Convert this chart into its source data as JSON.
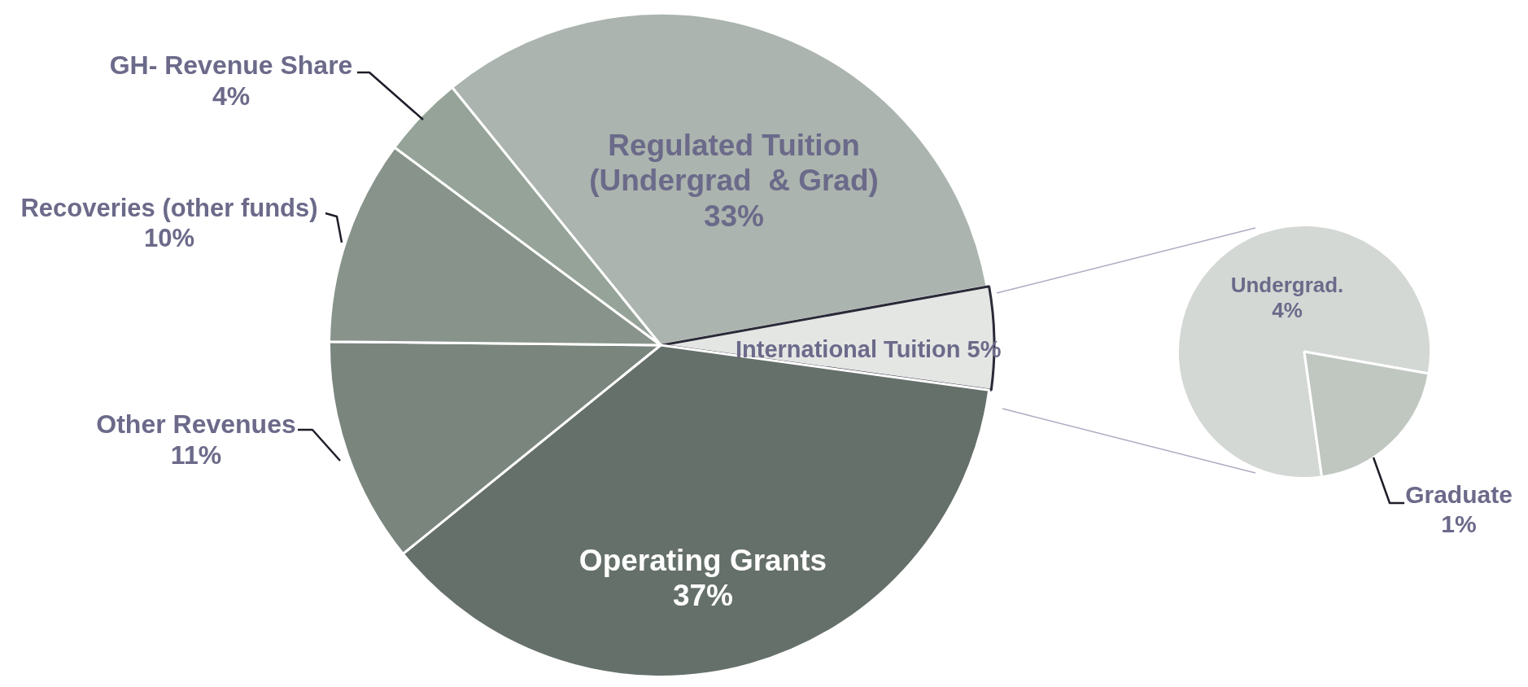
{
  "chart_data": [
    {
      "type": "pie",
      "categories": [
        "Regulated Tuition (Undergrad  & Grad)",
        "International Tuition",
        "Operating Grants",
        "Other Revenues",
        "Recoveries (other funds)",
        "GH- Revenue Share"
      ],
      "values": [
        33,
        5,
        37,
        11,
        10,
        4
      ],
      "value_labels": [
        "33%",
        "5%",
        "37%",
        "11%",
        "10%",
        "4%"
      ],
      "colors": [
        "#abb4ae",
        "#e4e6e4",
        "#66706a",
        "#7a857e",
        "#88948b",
        "#95a398"
      ]
    },
    {
      "type": "pie",
      "categories": [
        "Undergrad.",
        "Graduate"
      ],
      "values": [
        4,
        1
      ],
      "value_labels": [
        "4%",
        "1%"
      ],
      "colors": [
        "#d4d8d4",
        "#c0c6c0"
      ]
    }
  ]
}
